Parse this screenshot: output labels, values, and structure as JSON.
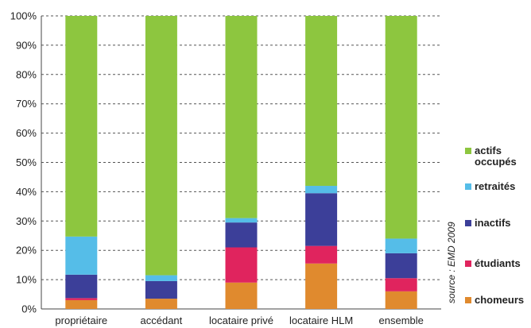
{
  "chart_data": {
    "type": "bar",
    "stacked": true,
    "categories": [
      "propriétaire",
      "accédant",
      "locataire privé",
      "locataire HLM",
      "ensemble"
    ],
    "series": [
      {
        "name": "chomeurs",
        "color": "#e08a2e",
        "values": [
          3,
          3.5,
          9,
          15.5,
          6
        ]
      },
      {
        "name": "étudiants",
        "color": "#e0245e",
        "values": [
          0.7,
          0,
          12,
          6,
          4.5
        ]
      },
      {
        "name": "inactifs",
        "color": "#3c3f99",
        "values": [
          8,
          6,
          8.5,
          18,
          8.5
        ]
      },
      {
        "name": "retraités",
        "color": "#55bde8",
        "values": [
          13,
          2,
          1.5,
          2.5,
          5
        ]
      },
      {
        "name": "actifs occupés",
        "color": "#8dc63f",
        "values": [
          75.3,
          88.5,
          69,
          58,
          76
        ]
      }
    ],
    "legend_order": [
      "actifs occupés",
      "retraités",
      "inactifs",
      "étudiants",
      "chomeurs"
    ],
    "yticks": [
      "0%",
      "10%",
      "20%",
      "30%",
      "40%",
      "50%",
      "60%",
      "70%",
      "80%",
      "90%",
      "100%"
    ],
    "ylim": [
      0,
      100
    ],
    "grid": true,
    "legend_position": "right",
    "source_note": "source : EMD 2009",
    "title": "",
    "xlabel": "",
    "ylabel": ""
  }
}
